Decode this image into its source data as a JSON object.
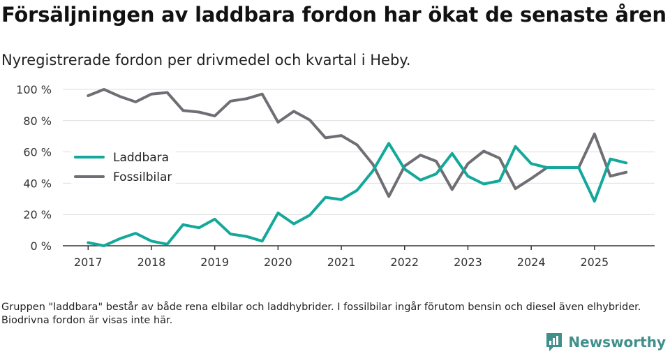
{
  "title": "Försäljningen av laddbara fordon har ökat de senaste åren",
  "subtitle": "Nyregistrerade fordon per drivmedel och kvartal i Heby.",
  "footnote": "Gruppen \"laddbara\" består av både rena elbilar och laddhybrider. I fossilbilar ingår förutom bensin och diesel även elhybrider. Biodrivna fordon är visas inte här.",
  "brand": {
    "name": "Newsworthy",
    "icon": "newsworthy-logo-icon",
    "color": "#3f8f8a"
  },
  "chart_data": {
    "type": "line",
    "title": "Försäljningen av laddbara fordon har ökat de senaste åren",
    "subtitle": "Nyregistrerade fordon per drivmedel och kvartal i Heby.",
    "xlabel": "",
    "ylabel": "",
    "x": [
      2017.0,
      2017.25,
      2017.5,
      2017.75,
      2018.0,
      2018.25,
      2018.5,
      2018.75,
      2019.0,
      2019.25,
      2019.5,
      2019.75,
      2020.0,
      2020.25,
      2020.5,
      2020.75,
      2021.0,
      2021.25,
      2021.5,
      2021.75,
      2022.0,
      2022.25,
      2022.5,
      2022.75,
      2023.0,
      2023.25,
      2023.5,
      2023.75,
      2024.0,
      2024.25,
      2024.5,
      2024.75,
      2025.0,
      2025.25,
      2025.5
    ],
    "series": [
      {
        "name": "Laddbara",
        "color": "#14a89b",
        "values": [
          2,
          0,
          4.5,
          8,
          3,
          1,
          13.5,
          11.5,
          17,
          7.5,
          6,
          3,
          21,
          14,
          19.5,
          31,
          29.5,
          35.5,
          48,
          65.5,
          49,
          42,
          46,
          59,
          44.5,
          39.5,
          41.5,
          63.5,
          52.5,
          50,
          50,
          50,
          28.5,
          55.5,
          53
        ]
      },
      {
        "name": "Fossilbilar",
        "color": "#6f6e75",
        "values": [
          96,
          100,
          95.5,
          92,
          97,
          98,
          86.5,
          85.5,
          83,
          92.5,
          94,
          97,
          79,
          86,
          80.5,
          69,
          70.5,
          64.5,
          52,
          31.5,
          51,
          58,
          54,
          36,
          52.5,
          60.5,
          56,
          36.5,
          43,
          50,
          50,
          50,
          71.5,
          44.5,
          47
        ]
      }
    ],
    "x_ticks": [
      2017,
      2018,
      2019,
      2020,
      2021,
      2022,
      2023,
      2024,
      2025
    ],
    "x_tick_labels": [
      "2017",
      "2018",
      "2019",
      "2020",
      "2021",
      "2022",
      "2023",
      "2024",
      "2025"
    ],
    "y_ticks": [
      0,
      20,
      40,
      60,
      80,
      100
    ],
    "y_tick_labels": [
      "0 %",
      "20 %",
      "40 %",
      "60 %",
      "80 %",
      "100 %"
    ],
    "xlim": [
      2016.6,
      2025.95
    ],
    "ylim": [
      0,
      100
    ],
    "grid": "horizontal",
    "legend_position": "center-left"
  }
}
